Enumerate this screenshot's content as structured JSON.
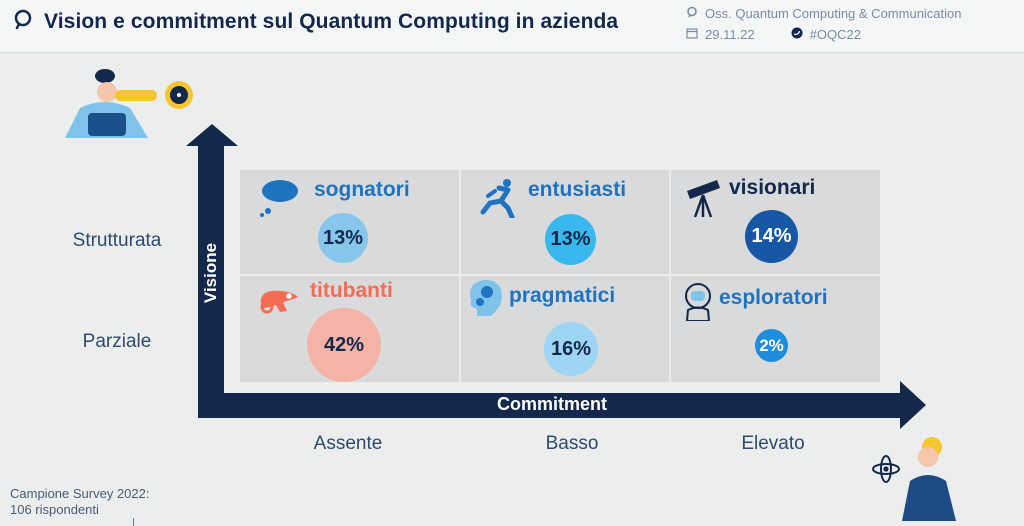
{
  "header": {
    "title": "Vision e commitment sul Quantum Computing in azienda",
    "observatory": "Oss. Quantum Computing & Communication",
    "date": "29.11.22",
    "hashtag": "#OQC22"
  },
  "axes": {
    "y_label": "Visione",
    "x_label": "Commitment",
    "rows": [
      "Strutturata",
      "Parziale"
    ],
    "columns": [
      "Assente",
      "Basso",
      "Elevato"
    ]
  },
  "cells": {
    "sognatori": {
      "label": "sognatori",
      "value": "13%",
      "color": "#1f74c2",
      "icon": "cloud-icon"
    },
    "entusiasti": {
      "label": "entusiasti",
      "value": "13%",
      "color": "#1f74c2",
      "icon": "runner-icon"
    },
    "visionari": {
      "label": "visionari",
      "value": "14%",
      "color": "#113f73",
      "icon": "telescope-icon"
    },
    "titubanti": {
      "label": "titubanti",
      "value": "42%",
      "color": "#f36c53",
      "icon": "chameleon-icon"
    },
    "pragmatici": {
      "label": "pragmatici",
      "value": "16%",
      "color": "#1f74c2",
      "icon": "gear-head-icon"
    },
    "esploratori": {
      "label": "esploratori",
      "value": "2%",
      "color": "#1f74c2",
      "icon": "astronaut-icon"
    }
  },
  "footer": {
    "line1": "Campione Survey 2022:",
    "line2": "106 rispondenti"
  }
}
